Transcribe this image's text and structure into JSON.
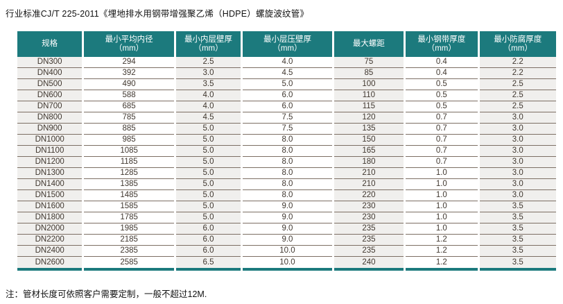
{
  "page": {
    "title": "行业标准CJ/T 225-2011《埋地排水用钢带增强聚乙烯（HDPE）螺旋波纹管》",
    "footnote": "注：管材长度可依照客户需要定制，一般不超过12M."
  },
  "colors": {
    "header_bg": "#1c7a7d",
    "header_text": "#ffffff",
    "column_shade": "#f0efed",
    "row_line": "#7c6e63",
    "body_text": "#40372f"
  },
  "table": {
    "headers": [
      {
        "line1": "规格",
        "line2": ""
      },
      {
        "line1": "最小平均内径",
        "line2": "（mm）"
      },
      {
        "line1": "最小内层壁厚",
        "line2": "（mm）"
      },
      {
        "line1": "最小层压壁厚",
        "line2": "（mm）"
      },
      {
        "line1": "最大螺距",
        "line2": ""
      },
      {
        "line1": "最小钢带厚度",
        "line2": "（mm）"
      },
      {
        "line1": "最小防腐厚度",
        "line2": "（mm）"
      }
    ],
    "rows": [
      [
        "DN300",
        "294",
        "2.5",
        "4.0",
        "75",
        "0.4",
        "2.2"
      ],
      [
        "DN400",
        "392",
        "3.0",
        "4.5",
        "85",
        "0.4",
        "2.2"
      ],
      [
        "DN500",
        "490",
        "3.5",
        "5.0",
        "100",
        "0.5",
        "2.5"
      ],
      [
        "DN600",
        "588",
        "4.0",
        "6.0",
        "110",
        "0.5",
        "2.5"
      ],
      [
        "DN700",
        "685",
        "4.0",
        "6.0",
        "115",
        "0.5",
        "2.5"
      ],
      [
        "DN800",
        "785",
        "4.5",
        "7.5",
        "120",
        "0.7",
        "3.0"
      ],
      [
        "DN900",
        "885",
        "5.0",
        "7.5",
        "135",
        "0.7",
        "3.0"
      ],
      [
        "DN1000",
        "985",
        "5.0",
        "8.0",
        "150",
        "0.7",
        "3.0"
      ],
      [
        "DN1100",
        "1085",
        "5.0",
        "8.0",
        "165",
        "0.7",
        "3.0"
      ],
      [
        "DN1200",
        "1185",
        "5.0",
        "8.0",
        "180",
        "0.7",
        "3.0"
      ],
      [
        "DN1300",
        "1285",
        "5.0",
        "8.0",
        "210",
        "1.0",
        "3.0"
      ],
      [
        "DN1400",
        "1385",
        "5.0",
        "8.0",
        "210",
        "1.0",
        "3.0"
      ],
      [
        "DN1500",
        "1485",
        "5.0",
        "8.0",
        "220",
        "1.0",
        "3.0"
      ],
      [
        "DN1600",
        "1585",
        "5.0",
        "9.0",
        "230",
        "1.0",
        "3.5"
      ],
      [
        "DN1800",
        "1785",
        "5.0",
        "9.0",
        "230",
        "1.0",
        "3.5"
      ],
      [
        "DN2000",
        "1985",
        "6.0",
        "9.0",
        "235",
        "1.0",
        "3.5"
      ],
      [
        "DN2200",
        "2185",
        "6.0",
        "9.0",
        "235",
        "1.2",
        "3.5"
      ],
      [
        "DN2400",
        "2385",
        "6.0",
        "10.0",
        "235",
        "1.2",
        "3.5"
      ],
      [
        "DN2600",
        "2585",
        "6.5",
        "10.0",
        "240",
        "1.2",
        "3.5"
      ]
    ]
  }
}
